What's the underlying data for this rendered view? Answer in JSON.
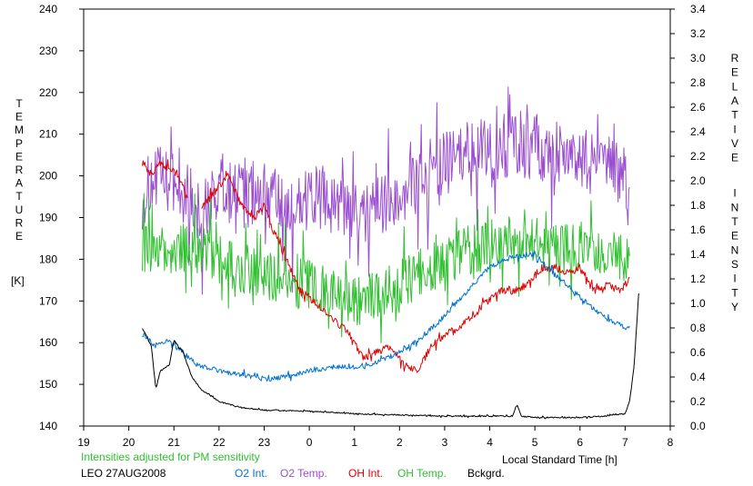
{
  "chart_data": {
    "type": "line",
    "xlabel": "Local Standard Time [h]",
    "x_ticks": [
      "19",
      "20",
      "21",
      "22",
      "23",
      "0",
      "1",
      "2",
      "3",
      "4",
      "5",
      "6",
      "7",
      "8"
    ],
    "xlim": [
      19,
      32
    ],
    "ylabel_left": "TEMPERATURE",
    "ylabel_left_unit": "[K]",
    "ylim_left": [
      140,
      240
    ],
    "yticks_left": [
      "140",
      "150",
      "160",
      "170",
      "180",
      "190",
      "200",
      "210",
      "220",
      "230",
      "240"
    ],
    "ylabel_right": "RELATIVE INTENSITY",
    "ylim_right": [
      0.0,
      3.4
    ],
    "yticks_right": [
      "0.0",
      "0.2",
      "0.4",
      "0.6",
      "0.8",
      "1.0",
      "1.2",
      "1.4",
      "1.6",
      "1.8",
      "2.0",
      "2.2",
      "2.4",
      "2.6",
      "2.8",
      "3.0",
      "3.2",
      "3.4"
    ],
    "note": "Intensities adjusted for PM sensitivity",
    "station": "LEO 27AUG2008",
    "legend": [
      {
        "label": "O2 Int.",
        "color": "#0070d0"
      },
      {
        "label": "O2 Temp.",
        "color": "#9a4fd0"
      },
      {
        "label": "OH Int.",
        "color": "#e00000"
      },
      {
        "label": "OH Temp.",
        "color": "#30c030"
      },
      {
        "label": "Bckgrd.",
        "color": "#000000"
      }
    ],
    "series": [
      {
        "name": "O2 Temp.",
        "axis": "left",
        "color": "#9a4fd0",
        "noise": 8,
        "x": [
          20.3,
          20.6,
          21.0,
          21.3,
          21.6,
          22.0,
          22.5,
          23.0,
          23.5,
          24.0,
          24.5,
          25.0,
          25.5,
          26.0,
          26.5,
          27.0,
          27.5,
          28.0,
          28.5,
          29.0,
          29.5,
          30.0,
          30.5,
          31.0,
          31.1
        ],
        "y": [
          195,
          200,
          197,
          196,
          190,
          198,
          195,
          197,
          190,
          195,
          194,
          190,
          192,
          196,
          200,
          203,
          205,
          206,
          208,
          207,
          206,
          204,
          202,
          200,
          195
        ]
      },
      {
        "name": "OH Temp.",
        "axis": "left",
        "color": "#30c030",
        "noise": 6,
        "x": [
          20.3,
          20.6,
          21.0,
          21.3,
          21.6,
          22.0,
          22.5,
          23.0,
          23.5,
          24.0,
          24.5,
          25.0,
          25.5,
          26.0,
          26.5,
          27.0,
          27.5,
          28.0,
          28.5,
          29.0,
          29.5,
          30.0,
          30.5,
          31.0,
          31.1
        ],
        "y": [
          183,
          182,
          182,
          183,
          182,
          180,
          178,
          176,
          175,
          174,
          173,
          170,
          171,
          174,
          177,
          180,
          182,
          183,
          185,
          184,
          183,
          182,
          181,
          180,
          178
        ]
      },
      {
        "name": "OH Int.",
        "axis": "right",
        "color": "#e00000",
        "noise": 0.03,
        "gap": [
          21.3,
          21.6
        ],
        "x": [
          20.3,
          20.5,
          20.7,
          20.9,
          21.1,
          21.3,
          21.6,
          21.9,
          22.2,
          22.5,
          22.8,
          23.0,
          23.2,
          23.5,
          23.8,
          24.0,
          24.3,
          24.6,
          24.9,
          25.2,
          25.5,
          25.8,
          26.1,
          26.4,
          26.7,
          27.0,
          27.3,
          27.6,
          27.9,
          28.2,
          28.5,
          28.8,
          29.1,
          29.4,
          29.7,
          30.0,
          30.3,
          30.6,
          30.9,
          31.1
        ],
        "y": [
          2.15,
          2.05,
          2.15,
          2.1,
          2.05,
          1.85,
          1.8,
          1.9,
          2.05,
          1.8,
          1.7,
          1.8,
          1.6,
          1.35,
          1.1,
          1.05,
          0.95,
          0.85,
          0.75,
          0.55,
          0.6,
          0.65,
          0.5,
          0.45,
          0.65,
          0.75,
          0.8,
          0.9,
          1.0,
          1.1,
          1.1,
          1.15,
          1.25,
          1.3,
          1.25,
          1.3,
          1.1,
          1.15,
          1.1,
          1.2
        ]
      },
      {
        "name": "O2 Int.",
        "axis": "right",
        "color": "#0070d0",
        "noise": 0.02,
        "x": [
          20.3,
          20.6,
          20.9,
          21.2,
          21.5,
          22.0,
          22.5,
          23.0,
          23.5,
          24.0,
          24.5,
          25.0,
          25.5,
          26.0,
          26.5,
          27.0,
          27.5,
          28.0,
          28.5,
          29.0,
          29.5,
          30.0,
          30.5,
          31.0,
          31.1
        ],
        "y": [
          0.75,
          0.65,
          0.7,
          0.6,
          0.5,
          0.45,
          0.42,
          0.38,
          0.4,
          0.45,
          0.48,
          0.48,
          0.52,
          0.6,
          0.72,
          0.9,
          1.1,
          1.3,
          1.38,
          1.4,
          1.22,
          1.05,
          0.9,
          0.8,
          0.8
        ]
      },
      {
        "name": "Bckgrd.",
        "axis": "right",
        "color": "#000000",
        "noise": 0.005,
        "x": [
          20.3,
          20.5,
          20.6,
          20.7,
          20.9,
          21.0,
          21.2,
          21.4,
          21.6,
          22.0,
          22.5,
          23.0,
          24.0,
          25.0,
          26.0,
          27.0,
          28.0,
          28.5,
          28.6,
          28.7,
          29.0,
          30.0,
          30.5,
          31.0,
          31.1,
          31.2,
          31.3
        ],
        "y": [
          0.8,
          0.65,
          0.3,
          0.45,
          0.5,
          0.7,
          0.6,
          0.4,
          0.3,
          0.2,
          0.15,
          0.13,
          0.12,
          0.1,
          0.09,
          0.08,
          0.08,
          0.08,
          0.18,
          0.08,
          0.07,
          0.07,
          0.08,
          0.1,
          0.2,
          0.5,
          1.08
        ]
      }
    ]
  }
}
